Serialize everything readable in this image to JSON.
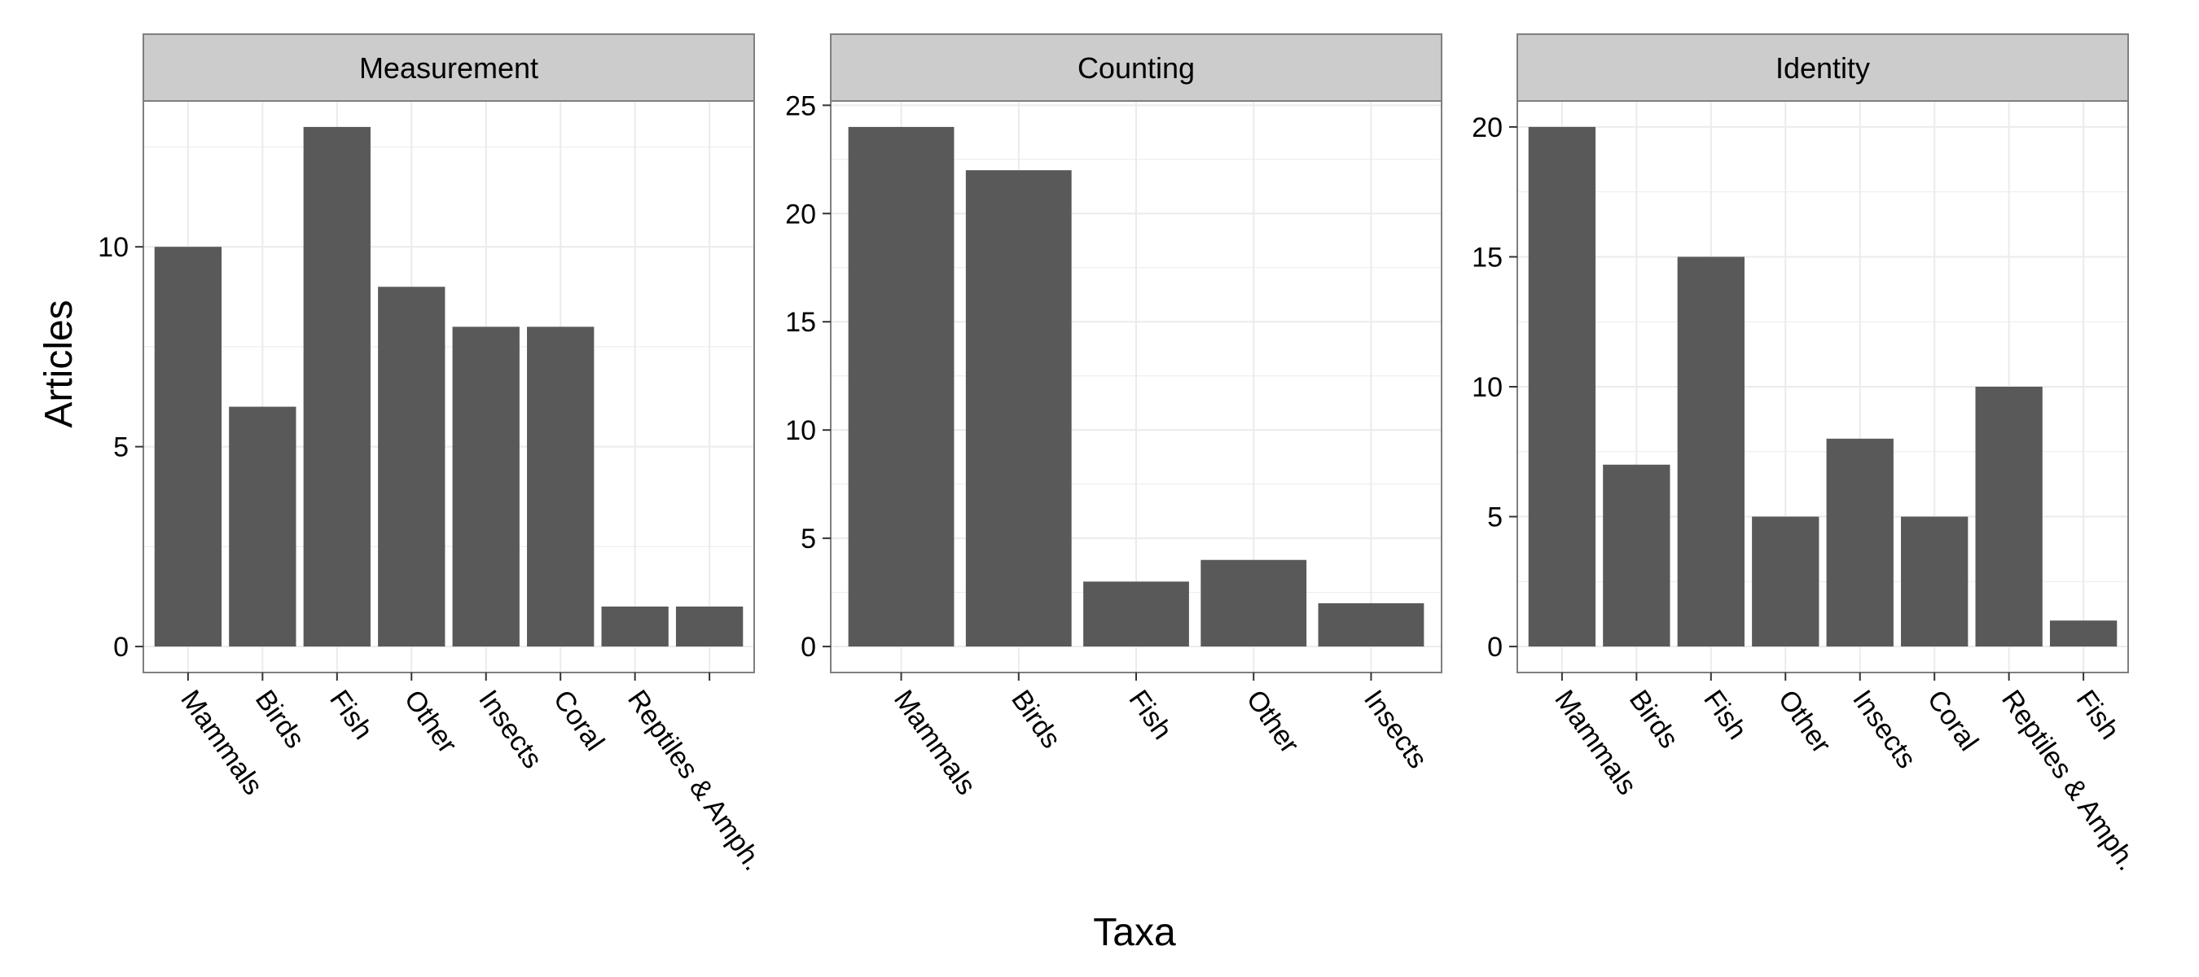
{
  "chart_data": {
    "type": "bar",
    "xlabel": "Taxa",
    "ylabel": "Articles",
    "grid": true,
    "colors": {
      "bar": "#595959",
      "strip": "#cccccc",
      "panel_border": "#7f7f7f",
      "gridline": "#ebebeb"
    },
    "panels": [
      {
        "title": "Measurement",
        "categories": [
          "Mammals",
          "Birds",
          "Fish",
          "Other",
          "Insects",
          "Coral",
          "Reptiles & Amph.",
          ""
        ],
        "values": [
          10,
          6,
          13,
          9,
          8,
          8,
          1,
          1
        ],
        "ylim": [
          -0.65,
          13.65
        ],
        "yticks": [
          0,
          5,
          10
        ]
      },
      {
        "title": "Counting",
        "categories": [
          "Mammals",
          "Birds",
          "Fish",
          "Other",
          "Insects"
        ],
        "values": [
          24,
          22,
          3,
          4,
          2
        ],
        "ylim": [
          -1.2,
          25.2
        ],
        "yticks": [
          0,
          5,
          10,
          15,
          20,
          25
        ]
      },
      {
        "title": "Identity",
        "categories": [
          "Mammals",
          "Birds",
          "Fish",
          "Other",
          "Insects",
          "Coral",
          "Reptiles & Amph.",
          "Fish"
        ],
        "values": [
          20,
          7,
          15,
          5,
          8,
          5,
          10,
          1
        ],
        "ylim": [
          -1,
          21
        ],
        "yticks": [
          0,
          5,
          10,
          15,
          20
        ]
      }
    ]
  }
}
